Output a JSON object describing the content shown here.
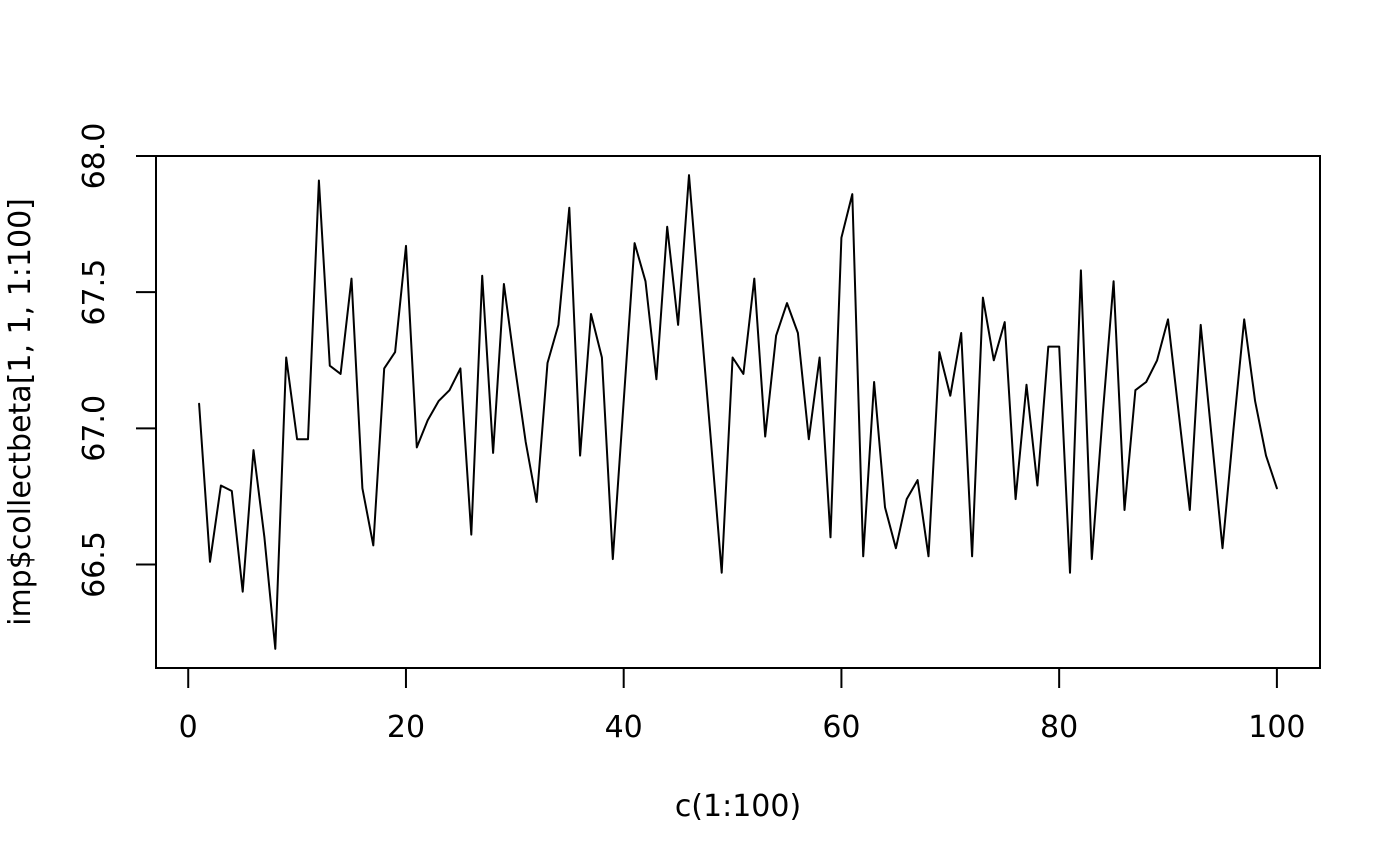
{
  "chart_data": {
    "type": "line",
    "title": "",
    "xlabel": "c(1:100)",
    "ylabel": "imp$collectbeta[1, 1, 1:100]",
    "line_color": "#000000",
    "background_color": "#ffffff",
    "grid": false,
    "legend": null,
    "x_ticks": [
      0,
      20,
      40,
      60,
      80,
      100
    ],
    "x_tick_labels": [
      "0",
      "20",
      "40",
      "60",
      "80",
      "100"
    ],
    "y_ticks": [
      66.5,
      67.0,
      67.5,
      68.0
    ],
    "y_tick_labels": [
      "66.5",
      "67.0",
      "67.5",
      "68.0"
    ],
    "xlim": [
      -2.96,
      103.96
    ],
    "ylim": [
      66.12,
      68.0
    ],
    "x": [
      1,
      2,
      3,
      4,
      5,
      6,
      7,
      8,
      9,
      10,
      11,
      12,
      13,
      14,
      15,
      16,
      17,
      18,
      19,
      20,
      21,
      22,
      23,
      24,
      25,
      26,
      27,
      28,
      29,
      30,
      31,
      32,
      33,
      34,
      35,
      36,
      37,
      38,
      39,
      40,
      41,
      42,
      43,
      44,
      45,
      46,
      47,
      48,
      49,
      50,
      51,
      52,
      53,
      54,
      55,
      56,
      57,
      58,
      59,
      60,
      61,
      62,
      63,
      64,
      65,
      66,
      67,
      68,
      69,
      70,
      71,
      72,
      73,
      74,
      75,
      76,
      77,
      78,
      79,
      80,
      81,
      82,
      83,
      84,
      85,
      86,
      87,
      88,
      89,
      90,
      91,
      92,
      93,
      94,
      95,
      96,
      97,
      98,
      99,
      100
    ],
    "values": [
      67.09,
      66.51,
      66.79,
      66.77,
      66.4,
      66.92,
      66.6,
      66.19,
      67.26,
      66.96,
      66.96,
      67.91,
      67.23,
      67.2,
      67.55,
      66.78,
      66.57,
      67.22,
      67.28,
      67.67,
      66.93,
      67.03,
      67.1,
      67.14,
      67.22,
      66.61,
      67.56,
      66.91,
      67.53,
      67.23,
      66.95,
      66.73,
      67.24,
      67.38,
      67.81,
      66.9,
      67.42,
      67.26,
      66.52,
      67.1,
      67.68,
      67.54,
      67.18,
      67.74,
      67.38,
      67.93,
      67.44,
      66.96,
      66.47,
      67.26,
      67.2,
      67.55,
      66.97,
      67.34,
      67.46,
      67.35,
      66.96,
      67.26,
      66.6,
      67.7,
      67.86,
      66.53,
      67.17,
      66.71,
      66.56,
      66.74,
      66.81,
      66.53,
      67.28,
      67.12,
      67.35,
      66.53,
      67.48,
      67.25,
      67.39,
      66.74,
      67.16,
      66.79,
      67.3,
      67.3,
      66.47,
      67.58,
      66.52,
      67.05,
      67.54,
      66.7,
      67.14,
      67.17,
      67.25,
      67.4,
      67.05,
      66.7,
      67.38,
      66.97,
      66.56,
      66.99,
      67.4,
      67.1,
      66.9,
      66.78
    ]
  }
}
